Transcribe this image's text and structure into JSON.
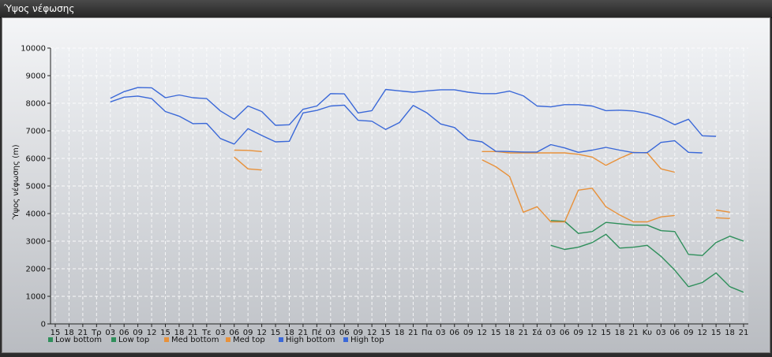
{
  "window": {
    "title": "Ύψος νέφωσης"
  },
  "chart_data": {
    "type": "line",
    "title": "",
    "xlabel": "",
    "ylabel": "Ύψος νέφωσης (m)",
    "ylim": [
      0,
      10000
    ],
    "yticks": [
      0,
      1000,
      2000,
      3000,
      4000,
      5000,
      6000,
      7000,
      8000,
      9000,
      10000
    ],
    "grid": true,
    "legend_position": "bottom-left",
    "categories": [
      "15",
      "18",
      "21",
      "Τρ",
      "03",
      "06",
      "09",
      "12",
      "15",
      "18",
      "21",
      "Τε",
      "03",
      "06",
      "09",
      "12",
      "15",
      "18",
      "21",
      "Πέ",
      "03",
      "06",
      "09",
      "12",
      "15",
      "18",
      "21",
      "Πα",
      "03",
      "06",
      "09",
      "12",
      "15",
      "18",
      "21",
      "Σά",
      "03",
      "06",
      "09",
      "12",
      "15",
      "18",
      "21",
      "Κυ",
      "03",
      "06",
      "09",
      "12",
      "15",
      "18",
      "21"
    ],
    "series": [
      {
        "name": "Low bottom",
        "color": "#2f8f5b",
        "values": [
          null,
          null,
          null,
          null,
          null,
          null,
          null,
          null,
          null,
          null,
          null,
          null,
          null,
          null,
          null,
          null,
          null,
          null,
          null,
          null,
          null,
          null,
          null,
          null,
          null,
          null,
          null,
          null,
          null,
          null,
          null,
          null,
          null,
          null,
          null,
          null,
          2850,
          2700,
          2780,
          2950,
          3250,
          2750,
          2780,
          2850,
          2450,
          1950,
          1350,
          1500,
          1850,
          1350,
          1150
        ]
      },
      {
        "name": "Low top",
        "color": "#2f8f5b",
        "values": [
          null,
          null,
          null,
          null,
          null,
          null,
          null,
          null,
          null,
          null,
          null,
          null,
          null,
          null,
          null,
          null,
          null,
          null,
          null,
          null,
          null,
          null,
          null,
          null,
          null,
          null,
          null,
          null,
          null,
          null,
          null,
          null,
          null,
          null,
          null,
          null,
          3750,
          3720,
          3280,
          3350,
          3680,
          3630,
          3580,
          3580,
          3380,
          3350,
          2520,
          2480,
          2950,
          3180,
          3000
        ]
      },
      {
        "name": "Med bottom",
        "color": "#e8913a",
        "values": [
          null,
          null,
          null,
          null,
          null,
          null,
          null,
          null,
          null,
          null,
          null,
          null,
          null,
          6050,
          5620,
          5580,
          null,
          null,
          null,
          null,
          null,
          null,
          null,
          null,
          null,
          null,
          null,
          null,
          null,
          null,
          null,
          5950,
          5700,
          5350,
          4050,
          4250,
          3700,
          3700,
          4850,
          4920,
          4250,
          3950,
          3700,
          3700,
          3880,
          3930,
          null,
          null,
          4130,
          4050,
          null
        ]
      },
      {
        "name": "Med top",
        "color": "#e8913a",
        "values": [
          null,
          null,
          null,
          null,
          null,
          null,
          null,
          null,
          null,
          null,
          null,
          null,
          null,
          6300,
          6290,
          6250,
          null,
          null,
          null,
          null,
          null,
          null,
          null,
          null,
          null,
          null,
          null,
          null,
          null,
          null,
          null,
          6250,
          6250,
          6200,
          6200,
          6200,
          6200,
          6200,
          6150,
          6050,
          5750,
          6000,
          6220,
          6200,
          5620,
          5500,
          null,
          null,
          3850,
          3820,
          null
        ]
      },
      {
        "name": "High bottom",
        "color": "#3a68d8",
        "values": [
          null,
          null,
          null,
          null,
          8050,
          8220,
          8260,
          8170,
          7700,
          7530,
          7260,
          7270,
          6720,
          6520,
          7080,
          6830,
          6600,
          6620,
          7650,
          7740,
          7900,
          7930,
          7380,
          7350,
          7050,
          7300,
          7920,
          7650,
          7250,
          7120,
          6680,
          6600,
          6260,
          6250,
          6230,
          6230,
          6500,
          6380,
          6220,
          6300,
          6400,
          6300,
          6210,
          6210,
          6580,
          6640,
          6220,
          6200,
          null,
          null,
          null
        ]
      },
      {
        "name": "High top",
        "color": "#3a68d8",
        "values": [
          null,
          null,
          null,
          null,
          8180,
          8420,
          8570,
          8560,
          8200,
          8300,
          8200,
          8170,
          7720,
          7420,
          7900,
          7700,
          7200,
          7220,
          7780,
          7900,
          8350,
          8340,
          7650,
          7730,
          8500,
          8450,
          8400,
          8450,
          8490,
          8490,
          8400,
          8350,
          8350,
          8440,
          8270,
          7900,
          7870,
          7950,
          7950,
          7900,
          7730,
          7750,
          7720,
          7630,
          7470,
          7220,
          7420,
          6820,
          6800,
          null,
          null
        ]
      }
    ]
  }
}
